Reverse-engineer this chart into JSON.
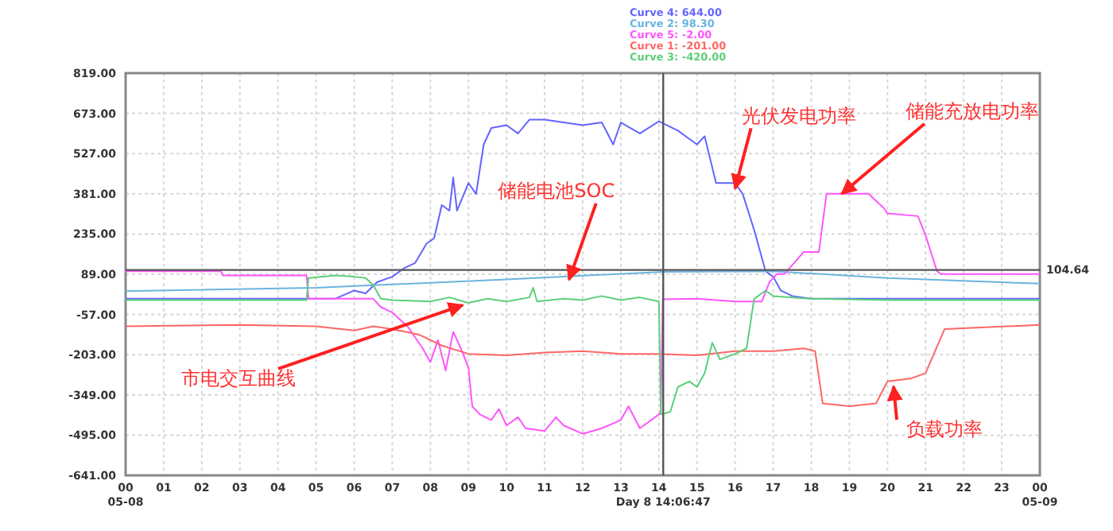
{
  "chart_data": {
    "type": "line",
    "legend": "top",
    "grid": true,
    "xlim": [
      0,
      24
    ],
    "xticks": [
      {
        "value": 0,
        "label": "00\n05-08"
      },
      {
        "value": 1,
        "label": "01"
      },
      {
        "value": 2,
        "label": "02"
      },
      {
        "value": 3,
        "label": "03"
      },
      {
        "value": 4,
        "label": "04"
      },
      {
        "value": 5,
        "label": "05"
      },
      {
        "value": 6,
        "label": "06"
      },
      {
        "value": 7,
        "label": "07"
      },
      {
        "value": 8,
        "label": "08"
      },
      {
        "value": 9,
        "label": "09"
      },
      {
        "value": 10,
        "label": "10"
      },
      {
        "value": 11,
        "label": "11"
      },
      {
        "value": 12,
        "label": "12"
      },
      {
        "value": 13,
        "label": "13"
      },
      {
        "value": 14,
        "label": "14"
      },
      {
        "value": 15,
        "label": "15"
      },
      {
        "value": 16,
        "label": "16"
      },
      {
        "value": 17,
        "label": "17"
      },
      {
        "value": 18,
        "label": "18"
      },
      {
        "value": 19,
        "label": "19"
      },
      {
        "value": 20,
        "label": "20"
      },
      {
        "value": 21,
        "label": "21"
      },
      {
        "value": 22,
        "label": "22"
      },
      {
        "value": 23,
        "label": "23"
      },
      {
        "value": 24,
        "label": "00\n05-09"
      }
    ],
    "ylim": [
      -641,
      819
    ],
    "yticks": [
      {
        "value": -641,
        "label": "-641.00"
      },
      {
        "value": -495,
        "label": "-495.00"
      },
      {
        "value": -349,
        "label": "-349.00"
      },
      {
        "value": -203,
        "label": "-203.00"
      },
      {
        "value": -57,
        "label": "-57.00"
      },
      {
        "value": 89,
        "label": "89.00"
      },
      {
        "value": 235,
        "label": "235.00"
      },
      {
        "value": 381,
        "label": "381.00"
      },
      {
        "value": 527,
        "label": "527.00"
      },
      {
        "value": 673,
        "label": "673.00"
      },
      {
        "value": 819,
        "label": "819.00"
      }
    ],
    "series": [
      {
        "name": "Curve 4: 644.00",
        "color": "#6464ff",
        "x": [
          0,
          5.5,
          6,
          6.3,
          6.6,
          7,
          7.3,
          7.6,
          7.9,
          8.1,
          8.3,
          8.5,
          8.6,
          8.7,
          9,
          9.2,
          9.4,
          9.6,
          10,
          10.3,
          10.6,
          11,
          11.5,
          12,
          12.5,
          12.8,
          13,
          13.5,
          14,
          14.5,
          15,
          15.2,
          15.5,
          15.7,
          16,
          16.2,
          16.5,
          16.8,
          17,
          17.2,
          17.5,
          18,
          24
        ],
        "values": [
          0,
          0,
          30,
          20,
          60,
          80,
          110,
          130,
          200,
          220,
          340,
          320,
          440,
          320,
          420,
          380,
          560,
          620,
          630,
          600,
          650,
          650,
          640,
          630,
          640,
          560,
          640,
          600,
          644,
          610,
          560,
          590,
          420,
          420,
          420,
          380,
          250,
          100,
          80,
          30,
          10,
          0,
          0
        ]
      },
      {
        "name": "Curve 2: 98.30",
        "color": "#6ab4e0",
        "x": [
          0,
          5,
          10,
          14.1,
          17,
          20,
          24
        ],
        "values": [
          28,
          40,
          70,
          98,
          100,
          75,
          55
        ]
      },
      {
        "name": "Curve 5: -2.00",
        "color": "#ff55ff",
        "x": [
          0,
          2.5,
          2.55,
          4.75,
          4.8,
          6.5,
          6.7,
          7,
          7.4,
          7.8,
          8,
          8.2,
          8.4,
          8.6,
          8.8,
          9,
          9.1,
          9.3,
          9.6,
          9.8,
          10,
          10.3,
          10.5,
          11,
          11.3,
          11.5,
          12,
          12.5,
          13,
          13.2,
          13.5,
          14,
          14.05,
          14.1,
          15,
          16,
          16.7,
          16.9,
          17.1,
          17.3,
          17.8,
          18.2,
          18.4,
          19.5,
          19.9,
          20,
          20.8,
          21,
          21.3,
          21.4,
          24
        ],
        "values": [
          100,
          100,
          85,
          85,
          0,
          0,
          -30,
          -50,
          -100,
          -180,
          -230,
          -150,
          -260,
          -120,
          -180,
          -250,
          -390,
          -420,
          -440,
          -400,
          -460,
          -430,
          -470,
          -480,
          -430,
          -460,
          -490,
          -470,
          -440,
          -390,
          -470,
          -420,
          -410,
          -2,
          0,
          -10,
          -10,
          60,
          90,
          90,
          170,
          170,
          381,
          381,
          330,
          310,
          300,
          230,
          100,
          90,
          90
        ]
      },
      {
        "name": "Curve 1: -201.00",
        "color": "#ff6666",
        "x": [
          0,
          3,
          5,
          6,
          6.5,
          7,
          7.7,
          8.3,
          9,
          10,
          11,
          12,
          13,
          14,
          15,
          16,
          17,
          17.8,
          18.1,
          18.3,
          19,
          19.7,
          20,
          20.6,
          21,
          21.5,
          24
        ],
        "values": [
          -100,
          -95,
          -100,
          -115,
          -100,
          -110,
          -130,
          -170,
          -200,
          -205,
          -195,
          -190,
          -200,
          -200,
          -205,
          -190,
          -190,
          -180,
          -190,
          -380,
          -390,
          -380,
          -300,
          -290,
          -270,
          -110,
          -95
        ]
      },
      {
        "name": "Curve 3: -420.00",
        "color": "#5ccf7a",
        "x": [
          0,
          2.5,
          4.75,
          4.8,
          5.5,
          6,
          6.3,
          6.5,
          6.7,
          7,
          8,
          8.5,
          9,
          9.5,
          10,
          10.6,
          10.7,
          10.8,
          11.5,
          12,
          12.5,
          13,
          13.5,
          14,
          14.05,
          14.3,
          14.5,
          14.8,
          15,
          15.2,
          15.4,
          15.6,
          16,
          16.3,
          16.5,
          16.8,
          17,
          18,
          20,
          24
        ],
        "values": [
          -5,
          -5,
          -5,
          75,
          85,
          80,
          75,
          50,
          0,
          -5,
          -10,
          5,
          -15,
          0,
          -10,
          5,
          40,
          -10,
          0,
          -5,
          10,
          -5,
          5,
          -10,
          -420,
          -410,
          -320,
          -300,
          -320,
          -270,
          -160,
          -220,
          -200,
          -180,
          0,
          30,
          10,
          0,
          -5,
          -5
        ]
      }
    ],
    "ref_lines": [
      {
        "axis": "x",
        "value": 14.113,
        "label": "Day 8 14:06:47",
        "color": "#555555"
      },
      {
        "axis": "y",
        "value": 104.64,
        "label": "104.64",
        "color": "#555555"
      }
    ],
    "annotations": [
      {
        "text": "光伏发电功率",
        "x": 16,
        "y": 400
      },
      {
        "text": "储能充放电功率",
        "x": 18.8,
        "y": 381
      },
      {
        "text": "储能电池SOC",
        "x": 11.64,
        "y": 69
      },
      {
        "text": "市电交互曲线",
        "x": 8.85,
        "y": -23
      },
      {
        "text": "负载功率",
        "x": 20.16,
        "y": -318
      }
    ]
  }
}
